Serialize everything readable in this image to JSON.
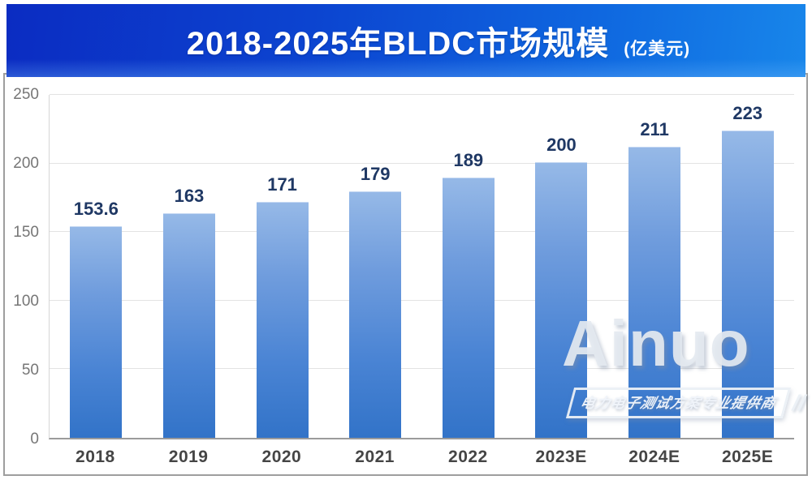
{
  "header": {
    "title": "2018-2025年BLDC市场规模",
    "unit_label": "(亿美元)"
  },
  "chart_data": {
    "type": "bar",
    "title": "2018-2025年BLDC市场规模",
    "unit": "亿美元",
    "categories": [
      "2018",
      "2019",
      "2020",
      "2021",
      "2022",
      "2023E",
      "2024E",
      "2025E"
    ],
    "values": [
      153.6,
      163,
      171,
      179,
      189,
      200,
      211,
      223
    ],
    "value_labels": [
      "153.6",
      "163",
      "171",
      "179",
      "189",
      "200",
      "211",
      "223"
    ],
    "xlabel": "",
    "ylabel": "",
    "ylim": [
      0,
      250
    ],
    "yticks": [
      0,
      50,
      100,
      150,
      200,
      250
    ],
    "grid": true,
    "legend": false,
    "colors": {
      "bar_top": "#96b9e7",
      "bar_bottom": "#3273c8",
      "value_label": "#1f3864",
      "banner_left": "#0b2cc2",
      "banner_right": "#1886ea",
      "axis_text": "#767676",
      "category_text": "#454545"
    }
  },
  "watermark": {
    "brand": "Ainuo",
    "tagline": "电力电子测试方案专业提供商",
    "slashes": "//"
  }
}
